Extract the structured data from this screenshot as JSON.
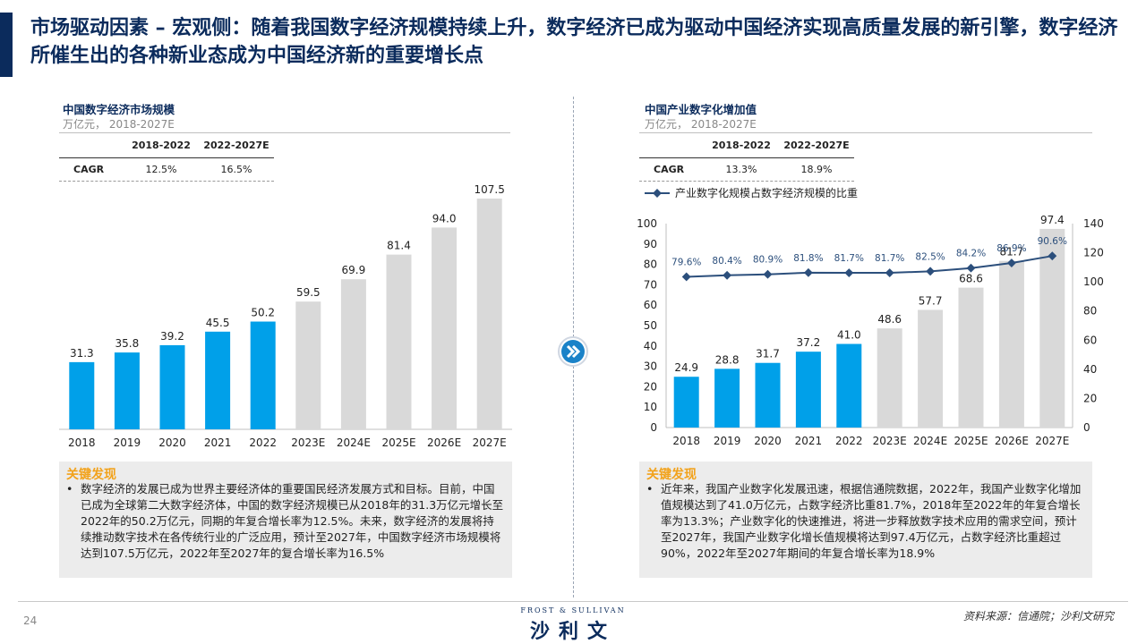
{
  "title": "市场驱动因素 – 宏观侧：随着我国数字经济规模持续上升，数字经济已成为驱动中国经济实现高质量发展的新引擎，数字经济所催生出的各种新业态成为中国经济新的重要增长点",
  "left": {
    "title": "中国数字经济市场规模",
    "subtitle": "万亿元， 2018-2027E",
    "cagr": {
      "headers": [
        "2018-2022",
        "2022-2027E"
      ],
      "label": "CAGR",
      "values": [
        "12.5%",
        "16.5%"
      ]
    },
    "findings_title": "关键发现",
    "findings_text": "数字经济的发展已成为世界主要经济体的重要国民经济发展方式和目标。目前，中国已成为全球第二大数字经济体，中国的数字经济规模已从2018年的31.3万亿元增长至2022年的50.2万亿元，同期的年复合增长率为12.5%。未来，数字经济的发展将持续推动数字技术在各传统行业的广泛应用，预计至2027年，中国数字经济市场规模将达到107.5万亿元，2022年至2027年的复合增长率为16.5%"
  },
  "right": {
    "title": "中国产业数字化增加值",
    "subtitle": "万亿元， 2018-2027E",
    "cagr": {
      "headers": [
        "2018-2022",
        "2022-2027E"
      ],
      "label": "CAGR",
      "values": [
        "13.3%",
        "18.9%"
      ]
    },
    "findings_title": "关键发现",
    "findings_text": "近年来，我国产业数字化发展迅速，根据信通院数据，2022年，我国产业数字化增加值规模达到了41.0万亿元，占数字经济比重81.7%，2018年至2022年的年复合增长率为13.3%；产业数字化的快速推进，将进一步释放数字技术应用的需求空间，预计至2027年，我国产业数字化增长值规模将达到97.4万亿元，占数字经济比重超过90%，2022年至2027年期间的年复合增长率为18.9%"
  },
  "colors": {
    "actual": "#00a0e9",
    "forecast": "#d9d9d9",
    "line": "#2c4f7c",
    "title": "#0b2b5c",
    "finding_title": "#f2a21b"
  },
  "footer": {
    "page_number": "24",
    "brand_small": "FROST & SULLIVAN",
    "brand_big": "沙利文",
    "source": "资料来源：信通院；沙利文研究"
  },
  "chart_data": [
    {
      "type": "bar",
      "categories": [
        "2018",
        "2019",
        "2020",
        "2021",
        "2022",
        "2023E",
        "2024E",
        "2025E",
        "2026E",
        "2027E"
      ],
      "values": [
        31.3,
        35.8,
        39.2,
        45.5,
        50.2,
        59.5,
        69.9,
        81.4,
        94.0,
        107.5
      ],
      "value_labels": [
        "31.3",
        "35.8",
        "39.2",
        "45.5",
        "50.2",
        "59.5",
        "69.9",
        "81.4",
        "94.0",
        "107.5"
      ],
      "forecast_from_index": 5,
      "ylim": [
        0,
        110
      ]
    },
    {
      "type": "bar",
      "categories": [
        "2018",
        "2019",
        "2020",
        "2021",
        "2022",
        "2023E",
        "2024E",
        "2025E",
        "2026E",
        "2027E"
      ],
      "values": [
        24.9,
        28.8,
        31.7,
        37.2,
        41.0,
        48.6,
        57.7,
        68.6,
        81.7,
        97.4
      ],
      "value_labels": [
        "24.9",
        "28.8",
        "31.7",
        "37.2",
        "41.0",
        "48.6",
        "57.7",
        "68.6",
        "81.7",
        "97.4"
      ],
      "forecast_from_index": 5,
      "ylim": [
        0,
        100
      ],
      "yticks": [
        "0",
        "10",
        "20",
        "30",
        "40",
        "50",
        "60",
        "70",
        "80",
        "90",
        "100"
      ],
      "y2lim": [
        0,
        140
      ],
      "y2ticks": [
        "0",
        "20",
        "40",
        "60",
        "80",
        "100",
        "120",
        "140"
      ],
      "line_series": {
        "name": "产业数字化规模占数字经济规模的比重",
        "values": [
          79.6,
          80.4,
          80.9,
          81.8,
          81.7,
          81.7,
          82.5,
          84.2,
          86.9,
          90.6
        ],
        "labels": [
          "79.6%",
          "80.4%",
          "80.9%",
          "81.8%",
          "81.7%",
          "81.7%",
          "82.5%",
          "84.2%",
          "86.9%",
          "90.6%"
        ]
      }
    }
  ]
}
